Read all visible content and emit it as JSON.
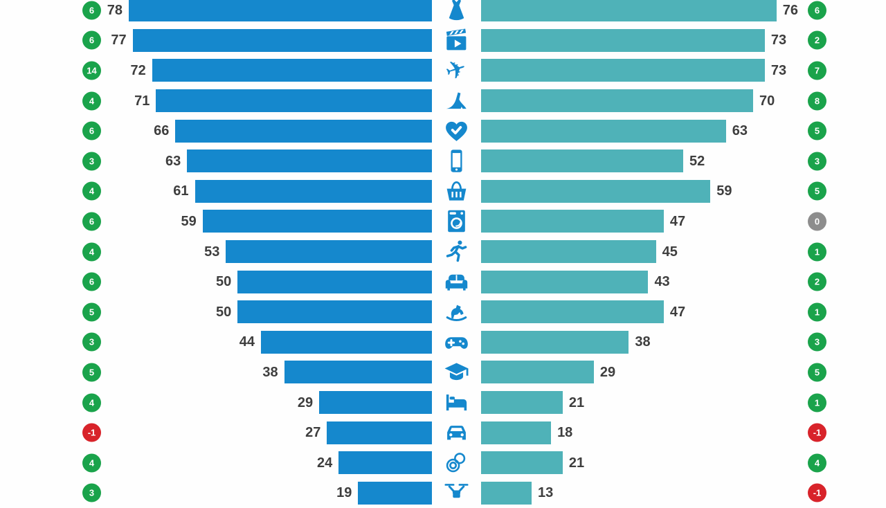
{
  "chart_data": {
    "type": "bar",
    "subtype": "bidirectional-tornado-infographic",
    "orientation": "horizontal, two mirrored value columns with centered category icons",
    "grid": false,
    "value_labels": "at inner/outer bar ends",
    "value_range": [
      0,
      80
    ],
    "series": [
      {
        "name": "left-blue-bars",
        "color": "#1588cd"
      },
      {
        "name": "right-teal-bars",
        "color": "#4fb2b8"
      }
    ],
    "rows": [
      {
        "left_change": "6",
        "left_value": 78,
        "icon": "dress",
        "right_value": 76,
        "right_change": "6"
      },
      {
        "left_change": "6",
        "left_value": 77,
        "icon": "clapperboard",
        "right_value": 73,
        "right_change": "2"
      },
      {
        "left_change": "14",
        "left_value": 72,
        "icon": "airplane",
        "right_value": 73,
        "right_change": "7"
      },
      {
        "left_change": "4",
        "left_value": 71,
        "icon": "high-heel",
        "right_value": 70,
        "right_change": "8"
      },
      {
        "left_change": "6",
        "left_value": 66,
        "icon": "heart-check",
        "right_value": 63,
        "right_change": "5"
      },
      {
        "left_change": "3",
        "left_value": 63,
        "icon": "smartphone",
        "right_value": 52,
        "right_change": "3"
      },
      {
        "left_change": "4",
        "left_value": 61,
        "icon": "shopping-basket",
        "right_value": 59,
        "right_change": "5"
      },
      {
        "left_change": "6",
        "left_value": 59,
        "icon": "washing-machine",
        "right_value": 47,
        "right_change": "0"
      },
      {
        "left_change": "4",
        "left_value": 53,
        "icon": "runner",
        "right_value": 45,
        "right_change": "1"
      },
      {
        "left_change": "6",
        "left_value": 50,
        "icon": "sofa",
        "right_value": 43,
        "right_change": "2"
      },
      {
        "left_change": "5",
        "left_value": 50,
        "icon": "rocking-horse",
        "right_value": 47,
        "right_change": "1"
      },
      {
        "left_change": "3",
        "left_value": 44,
        "icon": "gamepad",
        "right_value": 38,
        "right_change": "3"
      },
      {
        "left_change": "5",
        "left_value": 38,
        "icon": "graduation-cap",
        "right_value": 29,
        "right_change": "5"
      },
      {
        "left_change": "4",
        "left_value": 29,
        "icon": "bed",
        "right_value": 21,
        "right_change": "1"
      },
      {
        "left_change": "-1",
        "left_value": 27,
        "icon": "car",
        "right_value": 18,
        "right_change": "-1"
      },
      {
        "left_change": "4",
        "left_value": 24,
        "icon": "pacifier",
        "right_value": 21,
        "right_change": "4"
      },
      {
        "left_change": "3",
        "left_value": 19,
        "icon": "drone",
        "right_value": 13,
        "right_change": "-1"
      }
    ]
  },
  "colors": {
    "left_bar": "#1588cd",
    "right_bar": "#4fb2b8",
    "icon": "#1588cd",
    "badge_positive": "#1aa34b",
    "badge_negative": "#d8232a",
    "badge_zero": "#8d8d8d",
    "value_text": "#3e3e3e",
    "background": "#fefefe"
  }
}
